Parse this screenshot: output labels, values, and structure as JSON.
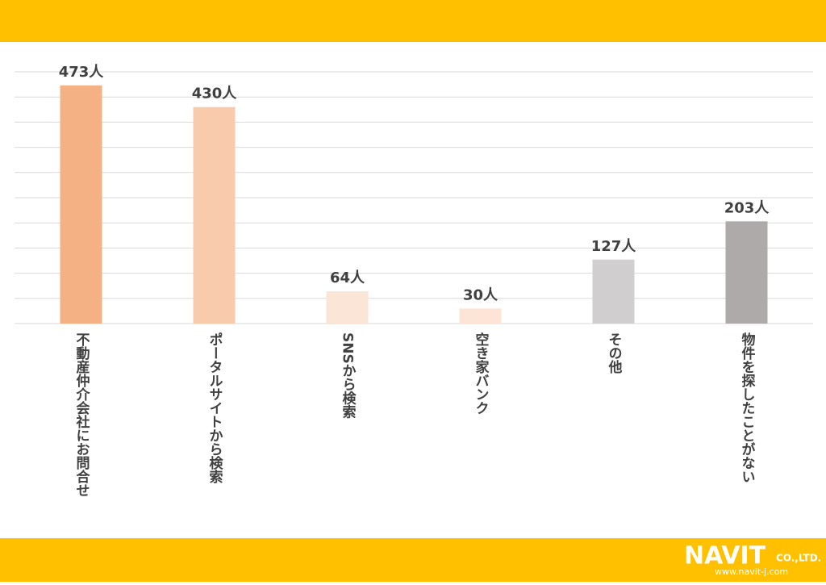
{
  "chart_data": {
    "type": "bar",
    "categories": [
      "不動産仲介会社にお問合せ",
      "ポータルサイトから検索",
      "SNSから検索",
      "空き家バンク",
      "その他",
      "物件を探したことがない"
    ],
    "values": [
      473,
      430,
      64,
      30,
      127,
      203
    ],
    "value_labels": [
      "473人",
      "430人",
      "64人",
      "30人",
      "127人",
      "203人"
    ],
    "colors": [
      "#f4b183",
      "#f8cbad",
      "#fbe5d6",
      "#fce4d6",
      "#d0cece",
      "#aeaaaa"
    ],
    "ylim": [
      0,
      500
    ],
    "yticks": [
      0,
      50,
      100,
      150,
      200,
      250,
      300,
      350,
      400,
      450,
      500
    ],
    "grid": true
  },
  "logo": {
    "name": "NAVIT",
    "suffix": "CO.,LTD.",
    "url": "www.navit-j.com"
  }
}
